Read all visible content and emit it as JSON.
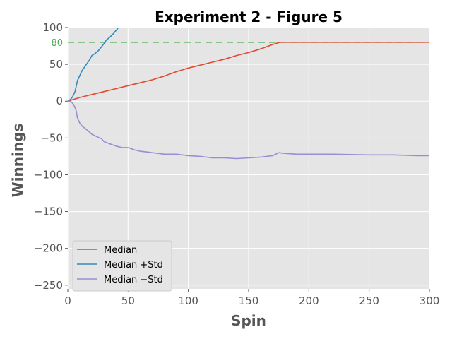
{
  "chart_data": {
    "type": "line",
    "title": "Experiment 2 - Figure 5",
    "xlabel": "Spin",
    "ylabel": "Winnings",
    "xlim": [
      0,
      300
    ],
    "ylim": [
      -255,
      100
    ],
    "grid": true,
    "legend_position": "lower-left",
    "x_ticks": [
      0,
      50,
      100,
      150,
      200,
      250,
      300
    ],
    "y_ticks": [
      100,
      50,
      0,
      -50,
      -100,
      -150,
      -200,
      -250
    ],
    "x_tick_labels": [
      "0",
      "50",
      "100",
      "150",
      "200",
      "250",
      "300"
    ],
    "y_tick_labels": [
      "100",
      "50",
      "0",
      "−50",
      "−100",
      "−150",
      "−200",
      "−250"
    ],
    "reference_line": {
      "y": 80,
      "label": "80",
      "color": "#4caf50",
      "style": "dashed"
    },
    "series": [
      {
        "name": "Median",
        "color": "#e24a33",
        "points": [
          [
            0,
            0
          ],
          [
            10,
            5
          ],
          [
            20,
            9
          ],
          [
            30,
            13
          ],
          [
            40,
            17
          ],
          [
            50,
            21
          ],
          [
            60,
            25
          ],
          [
            70,
            29
          ],
          [
            80,
            34
          ],
          [
            90,
            40
          ],
          [
            100,
            45
          ],
          [
            110,
            49
          ],
          [
            120,
            53
          ],
          [
            130,
            57
          ],
          [
            140,
            62
          ],
          [
            150,
            66
          ],
          [
            160,
            71
          ],
          [
            170,
            77
          ],
          [
            176,
            80
          ],
          [
            200,
            80
          ],
          [
            250,
            80
          ],
          [
            300,
            80
          ]
        ]
      },
      {
        "name": "Median +Std",
        "color": "#348abd",
        "points": [
          [
            0,
            0
          ],
          [
            2,
            2
          ],
          [
            4,
            6
          ],
          [
            6,
            13
          ],
          [
            8,
            28
          ],
          [
            10,
            35
          ],
          [
            12,
            42
          ],
          [
            15,
            49
          ],
          [
            18,
            56
          ],
          [
            20,
            62
          ],
          [
            22,
            64
          ],
          [
            25,
            68
          ],
          [
            28,
            74
          ],
          [
            30,
            78
          ],
          [
            32,
            83
          ],
          [
            35,
            87
          ],
          [
            38,
            92
          ],
          [
            41,
            98
          ],
          [
            42,
            100
          ]
        ]
      },
      {
        "name": "Median −Std",
        "color": "#988ed5",
        "points": [
          [
            0,
            0
          ],
          [
            3,
            -1
          ],
          [
            5,
            -5
          ],
          [
            7,
            -13
          ],
          [
            8,
            -23
          ],
          [
            10,
            -30
          ],
          [
            12,
            -34
          ],
          [
            15,
            -38
          ],
          [
            18,
            -42
          ],
          [
            20,
            -45
          ],
          [
            25,
            -49
          ],
          [
            28,
            -51
          ],
          [
            30,
            -55
          ],
          [
            35,
            -58
          ],
          [
            40,
            -61
          ],
          [
            45,
            -63
          ],
          [
            50,
            -63
          ],
          [
            55,
            -66
          ],
          [
            60,
            -68
          ],
          [
            65,
            -69
          ],
          [
            70,
            -70
          ],
          [
            75,
            -71
          ],
          [
            80,
            -72
          ],
          [
            85,
            -72
          ],
          [
            90,
            -72
          ],
          [
            95,
            -73
          ],
          [
            100,
            -74
          ],
          [
            110,
            -75
          ],
          [
            120,
            -77
          ],
          [
            125,
            -77
          ],
          [
            130,
            -77
          ],
          [
            140,
            -78
          ],
          [
            150,
            -77
          ],
          [
            160,
            -76
          ],
          [
            170,
            -74
          ],
          [
            175,
            -70
          ],
          [
            180,
            -71
          ],
          [
            190,
            -72
          ],
          [
            200,
            -72
          ],
          [
            220,
            -72
          ],
          [
            250,
            -73
          ],
          [
            270,
            -73
          ],
          [
            290,
            -74
          ],
          [
            300,
            -74
          ]
        ]
      }
    ]
  }
}
